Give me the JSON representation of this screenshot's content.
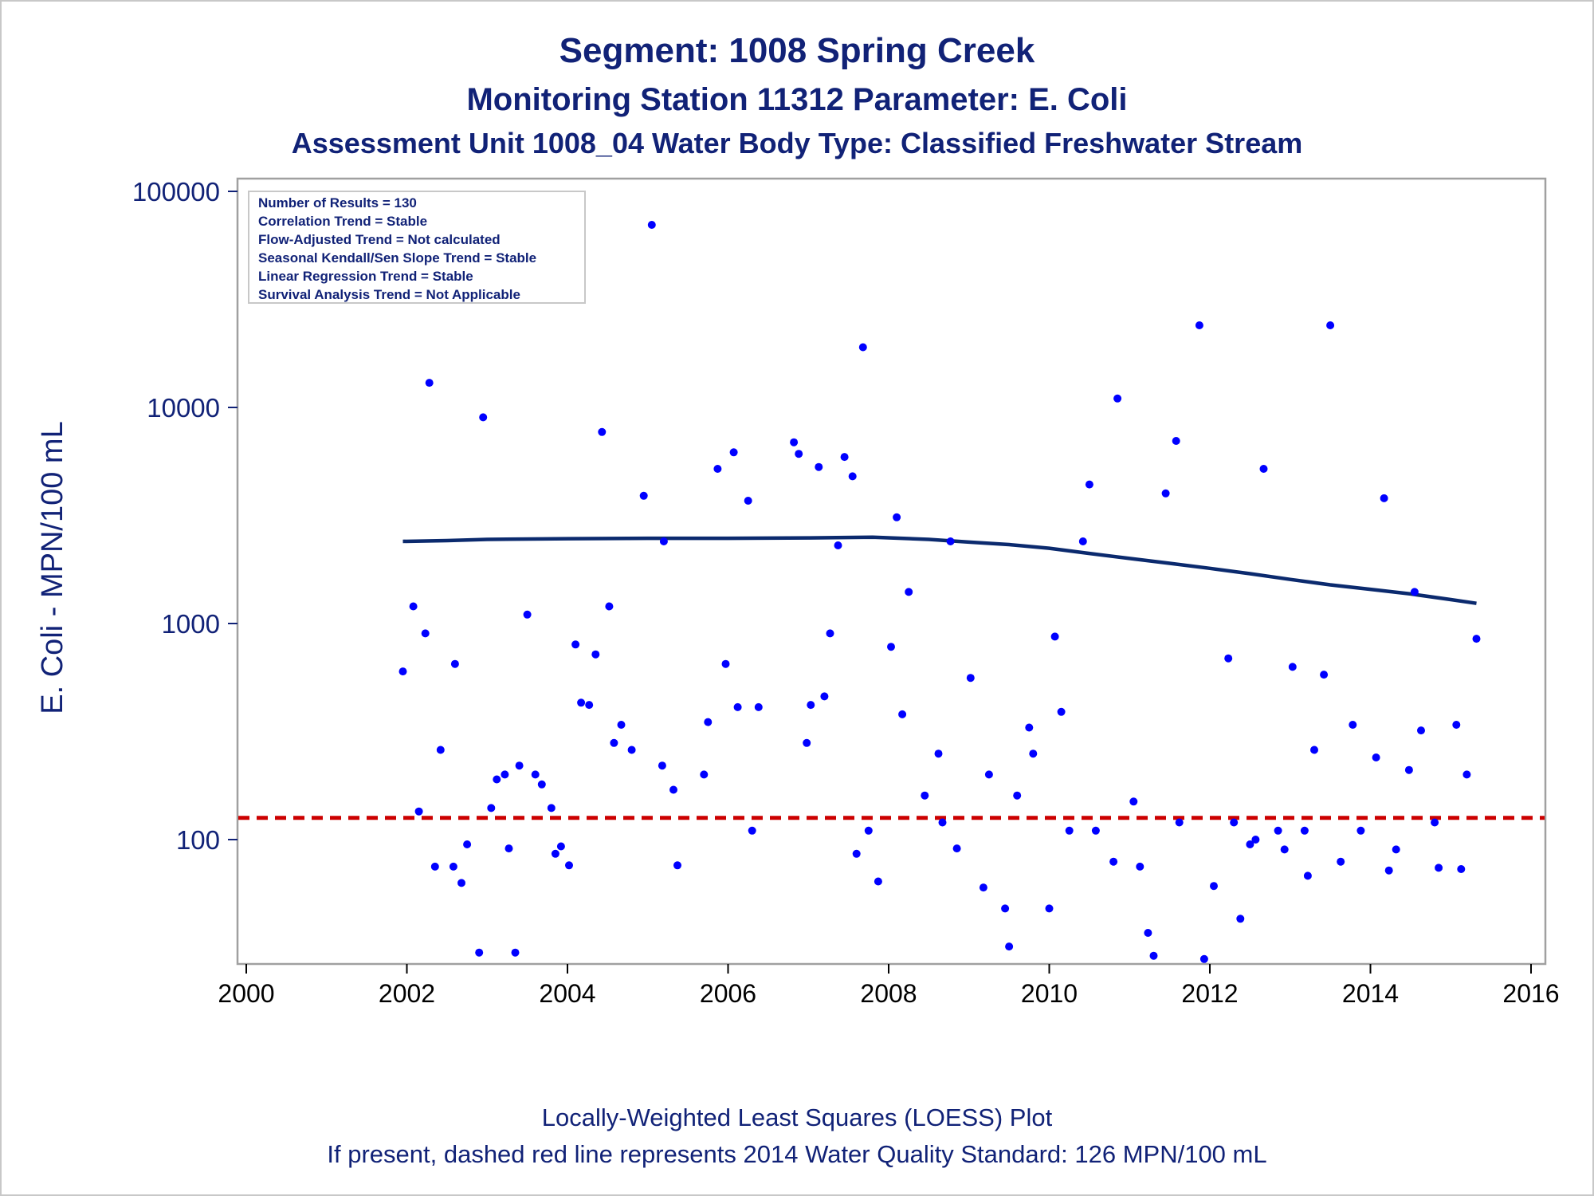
{
  "titles": {
    "line1": "Segment: 1008  Spring Creek",
    "line2": "Monitoring Station 11312 Parameter: E. Coli",
    "line3": "Assessment Unit 1008_04   Water Body Type: Classified Freshwater Stream"
  },
  "footnotes": {
    "line1": "Locally-Weighted Least Squares (LOESS) Plot",
    "line2": "If present, dashed red line represents 2014 Water Quality Standard: 126 MPN/100 mL"
  },
  "stats_box": [
    "Number of Results = 130",
    "Correlation Trend = Stable",
    "Flow-Adjusted Trend = Not calculated",
    "Seasonal Kendall/Sen Slope Trend = Stable",
    "Linear Regression Trend = Stable",
    "Survival Analysis Trend = Not Applicable"
  ],
  "colors": {
    "title": "#112277",
    "points": "#0000ff",
    "loess": "#0b2a6e",
    "standard": "#cc0000",
    "frame": "#a0a0a0"
  },
  "chart_data": {
    "type": "scatter",
    "title": "Segment: 1008  Spring Creek",
    "xlabel": "",
    "ylabel": "E. Coli - MPN/100 mL",
    "x_scale": "linear (year)",
    "y_scale": "log10",
    "xlim": [
      2000,
      2016
    ],
    "ylim": [
      27,
      100000
    ],
    "x_ticks": [
      2000,
      2002,
      2004,
      2006,
      2008,
      2010,
      2012,
      2014,
      2016
    ],
    "y_ticks": [
      100,
      1000,
      10000,
      100000
    ],
    "grid": false,
    "reference_line": {
      "name": "2014 Water Quality Standard",
      "y": 126,
      "style": "dashed",
      "color": "#cc0000"
    },
    "series": [
      {
        "type": "scatter",
        "points": [
          [
            2001.95,
            600
          ],
          [
            2002.08,
            1200
          ],
          [
            2002.15,
            135
          ],
          [
            2002.23,
            900
          ],
          [
            2002.28,
            13000
          ],
          [
            2002.35,
            75
          ],
          [
            2002.42,
            260
          ],
          [
            2002.58,
            75
          ],
          [
            2002.6,
            650
          ],
          [
            2002.68,
            63
          ],
          [
            2002.75,
            95
          ],
          [
            2002.9,
            30
          ],
          [
            2002.95,
            9000
          ],
          [
            2003.05,
            140
          ],
          [
            2003.12,
            190
          ],
          [
            2003.22,
            200
          ],
          [
            2003.27,
            91
          ],
          [
            2003.35,
            30
          ],
          [
            2003.4,
            220
          ],
          [
            2003.5,
            1100
          ],
          [
            2003.6,
            200
          ],
          [
            2003.68,
            180
          ],
          [
            2003.8,
            140
          ],
          [
            2003.85,
            86
          ],
          [
            2003.92,
            93
          ],
          [
            2004.02,
            76
          ],
          [
            2004.1,
            800
          ],
          [
            2004.17,
            430
          ],
          [
            2004.27,
            420
          ],
          [
            2004.35,
            720
          ],
          [
            2004.43,
            7700
          ],
          [
            2004.52,
            1200
          ],
          [
            2004.58,
            280
          ],
          [
            2004.67,
            340
          ],
          [
            2004.8,
            260
          ],
          [
            2004.95,
            3900
          ],
          [
            2005.05,
            70000
          ],
          [
            2005.18,
            220
          ],
          [
            2005.2,
            2400
          ],
          [
            2005.32,
            170
          ],
          [
            2005.37,
            76
          ],
          [
            2005.7,
            200
          ],
          [
            2005.75,
            350
          ],
          [
            2005.87,
            5200
          ],
          [
            2005.97,
            650
          ],
          [
            2006.07,
            6200
          ],
          [
            2006.12,
            410
          ],
          [
            2006.25,
            3700
          ],
          [
            2006.3,
            110
          ],
          [
            2006.38,
            410
          ],
          [
            2006.82,
            6900
          ],
          [
            2006.88,
            6100
          ],
          [
            2006.98,
            280
          ],
          [
            2007.03,
            420
          ],
          [
            2007.13,
            5300
          ],
          [
            2007.2,
            460
          ],
          [
            2007.27,
            900
          ],
          [
            2007.37,
            2300
          ],
          [
            2007.45,
            5900
          ],
          [
            2007.55,
            4800
          ],
          [
            2007.6,
            86
          ],
          [
            2007.68,
            19000
          ],
          [
            2007.75,
            110
          ],
          [
            2007.87,
            64
          ],
          [
            2008.03,
            780
          ],
          [
            2008.1,
            3100
          ],
          [
            2008.17,
            380
          ],
          [
            2008.25,
            1400
          ],
          [
            2008.45,
            160
          ],
          [
            2008.62,
            250
          ],
          [
            2008.67,
            120
          ],
          [
            2008.85,
            91
          ],
          [
            2008.77,
            2400
          ],
          [
            2009.02,
            560
          ],
          [
            2009.18,
            60
          ],
          [
            2009.25,
            200
          ],
          [
            2009.45,
            48
          ],
          [
            2009.5,
            32
          ],
          [
            2009.6,
            160
          ],
          [
            2009.75,
            330
          ],
          [
            2009.8,
            250
          ],
          [
            2010.0,
            48
          ],
          [
            2010.07,
            870
          ],
          [
            2010.15,
            390
          ],
          [
            2010.25,
            110
          ],
          [
            2010.42,
            2400
          ],
          [
            2010.5,
            4400
          ],
          [
            2010.58,
            110
          ],
          [
            2010.8,
            79
          ],
          [
            2010.85,
            11000
          ],
          [
            2011.05,
            150
          ],
          [
            2011.13,
            75
          ],
          [
            2011.23,
            37
          ],
          [
            2011.3,
            29
          ],
          [
            2011.45,
            4000
          ],
          [
            2011.58,
            7000
          ],
          [
            2011.62,
            120
          ],
          [
            2011.87,
            24000
          ],
          [
            2011.93,
            28
          ],
          [
            2012.05,
            61
          ],
          [
            2012.23,
            690
          ],
          [
            2012.3,
            120
          ],
          [
            2012.38,
            43
          ],
          [
            2012.5,
            95
          ],
          [
            2012.57,
            100
          ],
          [
            2012.67,
            5200
          ],
          [
            2012.85,
            110
          ],
          [
            2012.93,
            90
          ],
          [
            2013.03,
            630
          ],
          [
            2013.18,
            110
          ],
          [
            2013.22,
            68
          ],
          [
            2013.3,
            260
          ],
          [
            2013.42,
            580
          ],
          [
            2013.5,
            24000
          ],
          [
            2013.63,
            79
          ],
          [
            2013.78,
            340
          ],
          [
            2013.88,
            110
          ],
          [
            2014.07,
            240
          ],
          [
            2014.17,
            3800
          ],
          [
            2014.23,
            72
          ],
          [
            2014.32,
            90
          ],
          [
            2014.48,
            210
          ],
          [
            2014.55,
            1400
          ],
          [
            2014.63,
            320
          ],
          [
            2014.8,
            120
          ],
          [
            2014.85,
            74
          ],
          [
            2015.07,
            340
          ],
          [
            2015.13,
            73
          ],
          [
            2015.2,
            200
          ],
          [
            2015.32,
            850
          ]
        ]
      },
      {
        "type": "line",
        "name": "LOESS",
        "points": [
          [
            2001.95,
            2400
          ],
          [
            2002.5,
            2420
          ],
          [
            2003.0,
            2450
          ],
          [
            2004.0,
            2470
          ],
          [
            2005.0,
            2480
          ],
          [
            2006.0,
            2480
          ],
          [
            2007.0,
            2490
          ],
          [
            2007.8,
            2510
          ],
          [
            2008.5,
            2450
          ],
          [
            2009.0,
            2380
          ],
          [
            2009.5,
            2320
          ],
          [
            2010.0,
            2230
          ],
          [
            2010.5,
            2110
          ],
          [
            2011.0,
            2000
          ],
          [
            2011.5,
            1900
          ],
          [
            2012.0,
            1800
          ],
          [
            2012.5,
            1700
          ],
          [
            2013.0,
            1600
          ],
          [
            2013.5,
            1510
          ],
          [
            2014.0,
            1440
          ],
          [
            2014.5,
            1370
          ],
          [
            2015.0,
            1290
          ],
          [
            2015.32,
            1240
          ]
        ]
      }
    ]
  }
}
